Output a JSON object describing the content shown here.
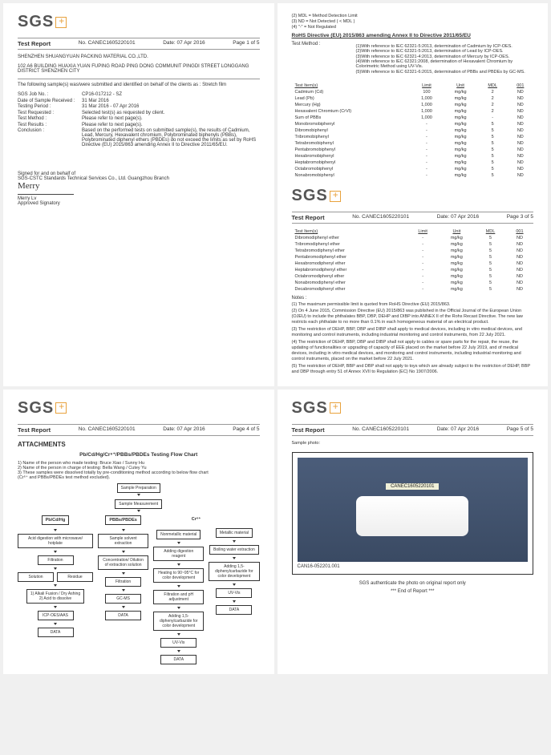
{
  "logo_text": "SGS",
  "report_label": "Test Report",
  "report_no_label": "No.",
  "report_no": "CANEC1605220101",
  "date_label": "Date:",
  "date": "07 Apr 2016",
  "pages": {
    "p1": "Page 1 of 5",
    "p3": "Page 3 of 5",
    "p4": "Page 4 of 5",
    "p5": "Page 5 of 5"
  },
  "company": "SHENZHEN SHUANGYUAN PACKING MATERIAL CO.,LTD.",
  "address": "102 A6 BUILDING HUAXIA YUAN FUPING ROAD PING DONG COMMUNIT PINGDI STREET LONGGANG DISTRICT SHENZHEN CITY",
  "intro": "The following sample(s) was/were submitted and identified on behalf of the clients as : Stretch film",
  "info": [
    {
      "label": "SGS Job No. :",
      "value": "CP16-017212 - SZ"
    },
    {
      "label": "Date of Sample Received :",
      "value": "31 Mar 2016"
    },
    {
      "label": "Testing Period :",
      "value": "31 Mar 2016 - 07 Apr 2016"
    },
    {
      "label": "Test Requested :",
      "value": "Selected test(s) as requested by client."
    },
    {
      "label": "Test Method :",
      "value": "Please refer to next page(s)."
    },
    {
      "label": "Test Results :",
      "value": "Please refer to next page(s)."
    },
    {
      "label": "Conclusion :",
      "value": "Based on the performed tests on submitted sample(s), the results of Cadmium, Lead, Mercury, Hexavalent chromium, Polybrominated biphenyls (PBBs), Polybrominated diphenyl ethers (PBDEs) do not exceed  the limits as set by RoHS Directive (EU) 2015/863 amending Annex II to Directive 2011/65/EU."
    }
  ],
  "sig_for": "Signed for and on behalf of",
  "sig_org": "SGS-CSTC Standards Technical Services Co., Ltd. Guangzhou Branch",
  "sig_name": "Merry",
  "approver": "Merry Lv",
  "approver_title": "Approved Signatory",
  "legend": [
    "(2) MDL = Method Detection Limit",
    "(3) ND = Not Detected ( < MDL )",
    "(4) \"-\" = Not Regulated"
  ],
  "directive_title": "RoHS Directive (EU) 2015/863 amending Annex II to Directive 2011/65/EU",
  "methods_label": "Test Method :",
  "methods": [
    "(1)With reference to IEC 62321-5:2013, determination of Cadmium by ICP-OES.",
    "(2)With reference to IEC 62321-5:2013, determination of Lead by ICP-OES.",
    "(3)With reference to IEC 62321-4:2013, determination of Mercury by ICP-OES.",
    "(4)With reference to IEC 62321:2008, determination of Hexavalent Chromium by Colorimetric Method using UV-Vis.",
    "(5)With reference to IEC 62321-6:2015, determination of PBBs and PBDEs by GC-MS."
  ],
  "table1_headers": [
    "Test Item(s)",
    "Limit",
    "Unit",
    "MDL",
    "001"
  ],
  "table1_rows": [
    [
      "Cadmium (Cd)",
      "100",
      "mg/kg",
      "2",
      "ND"
    ],
    [
      "Lead (Pb)",
      "1,000",
      "mg/kg",
      "2",
      "ND"
    ],
    [
      "Mercury (Hg)",
      "1,000",
      "mg/kg",
      "2",
      "ND"
    ],
    [
      "Hexavalent Chromium (CrVI)",
      "1,000",
      "mg/kg",
      "2",
      "ND"
    ],
    [
      "Sum of PBBs",
      "1,000",
      "mg/kg",
      "-",
      "ND"
    ],
    [
      "Monobromobiphenyl",
      "-",
      "mg/kg",
      "5",
      "ND"
    ],
    [
      "Dibromobiphenyl",
      "-",
      "mg/kg",
      "5",
      "ND"
    ],
    [
      "Tribromobiphenyl",
      "-",
      "mg/kg",
      "5",
      "ND"
    ],
    [
      "Tetrabromobiphenyl",
      "-",
      "mg/kg",
      "5",
      "ND"
    ],
    [
      "Pentabromobiphenyl",
      "-",
      "mg/kg",
      "5",
      "ND"
    ],
    [
      "Hexabromobiphenyl",
      "-",
      "mg/kg",
      "5",
      "ND"
    ],
    [
      "Heptabromobiphenyl",
      "-",
      "mg/kg",
      "5",
      "ND"
    ],
    [
      "Octabromobiphenyl",
      "-",
      "mg/kg",
      "5",
      "ND"
    ],
    [
      "Nonabromobiphenyl",
      "-",
      "mg/kg",
      "5",
      "ND"
    ]
  ],
  "table2_rows": [
    [
      "Dibromodiphenyl ether",
      "-",
      "mg/kg",
      "5",
      "ND"
    ],
    [
      "Tribromodiphenyl ether",
      "-",
      "mg/kg",
      "5",
      "ND"
    ],
    [
      "Tetrabromodiphenyl ether",
      "-",
      "mg/kg",
      "5",
      "ND"
    ],
    [
      "Pentabromodiphenyl ether",
      "-",
      "mg/kg",
      "5",
      "ND"
    ],
    [
      "Hexabromodiphenyl ether",
      "-",
      "mg/kg",
      "5",
      "ND"
    ],
    [
      "Heptabromodiphenyl ether",
      "-",
      "mg/kg",
      "5",
      "ND"
    ],
    [
      "Octabromodiphenyl ether",
      "-",
      "mg/kg",
      "5",
      "ND"
    ],
    [
      "Nonabromodiphenyl ether",
      "-",
      "mg/kg",
      "5",
      "ND"
    ],
    [
      "Decabromodiphenyl ether",
      "-",
      "mg/kg",
      "5",
      "ND"
    ]
  ],
  "notes_label": "Notes :",
  "notes": [
    "(1) The maximum permissible limit is quoted from RoHS Directive (EU) 2015/863.",
    "(2) On 4 June  2015, Commission Directive (EU) 2015/863 was published in the Official Journal of the European Union (OJEU) to include the phthalates BBP, DBP, DEHP and DIBP into ANNEX II of the Rohs Recast Directive. The new law restricts each phthalate to no more than 0.1% in each homogeneous material of an electrical product.",
    "(3) The restriction of DEHP, BBP, DBP and DIBP shall apply to medical devices, including in vitro medical devices, and monitoring and control instruments, including industrial monitoring and control instruments, from 22 July 2021.",
    "(4) The restriction of DEHP, BBP, DBP and DIBP shall not apply to cables or spare parts for the repair, the reuse, the updating of functionalities or upgrading of capacity of EEE placed on the market before 22 July 2019, and of medical devices, including in vitro medical devices, and monitoring and control instruments, including industrial monitoring and control instruments, placed on the market before 22 July 2021.",
    "(5) The restriction of DEHP, BBP and DBP shall not apply to toys which are already subject to the restriction of DEHP, BBP and DBP through entry 51 of Annex XVII to Regulation (EC) No 1907/2006."
  ],
  "attachments": "ATTACHMENTS",
  "flow_title": "Pb/Cd/Hg/Cr⁶⁺/PBBs/PBDEs Testing Flow Chart",
  "flow_notes": [
    "1) Name of the person who made testing:  Bruce Xiao / Sunny Hu",
    "2) Name of the person in charge of testing:  Bella Wang / Cutey Yu",
    "3) These samples were dissolved totally by  pre-conditioning method according to below flow chart",
    "(Cr⁶⁺ and PBBs/PBDEs test method excluded)."
  ],
  "flow": {
    "sample_prep": "Sample Preparation",
    "sample_meas": "Sample Measurement",
    "col_a": "Pb/Cd/Hg",
    "col_b": "PBBs/PBDEs",
    "col_c": "Cr⁶⁺",
    "a1": "Acid digestion with microwave/ hotplate",
    "a2": "Filtration",
    "a3a": "Solution",
    "a3b": "Residue",
    "a4": "1) Alkali Fusion / Dry Ashing\n2) Acid to dissolve",
    "a5": "ICP-OES/AAS",
    "a6": "DATA",
    "b1": "Sample solvent extraction",
    "b2": "Concentration/ Dilution of extraction solution",
    "b3": "Filtration",
    "b4": "GC-MS",
    "b5": "DATA",
    "c_nm": "Nonmetallic material",
    "c_m": "Metallic material",
    "c_nm1": "Adding digestion reagent",
    "c_nm2": "Heating to 90~95°C for color development",
    "c_nm3": "Adding 1,5-diphenylcarbazide for color development",
    "c_nm4": "UV-Vis",
    "c_nm5": "DATA",
    "c_m1": "Boiling water extraction",
    "c_m2": "Adding 1,5-diphenylcarbazide for color development",
    "c_m3": "Filtration and pH adjustment",
    "c_m4": "UV-Vis",
    "c_m5": "DATA"
  },
  "sample_photo_label": "Sample photo:",
  "photo_id": "CANEC1605220101",
  "photo_caption": "CAN16-052201.001",
  "auth_note": "SGS authenticate the photo on original report only",
  "end": "*** End of Report ***"
}
